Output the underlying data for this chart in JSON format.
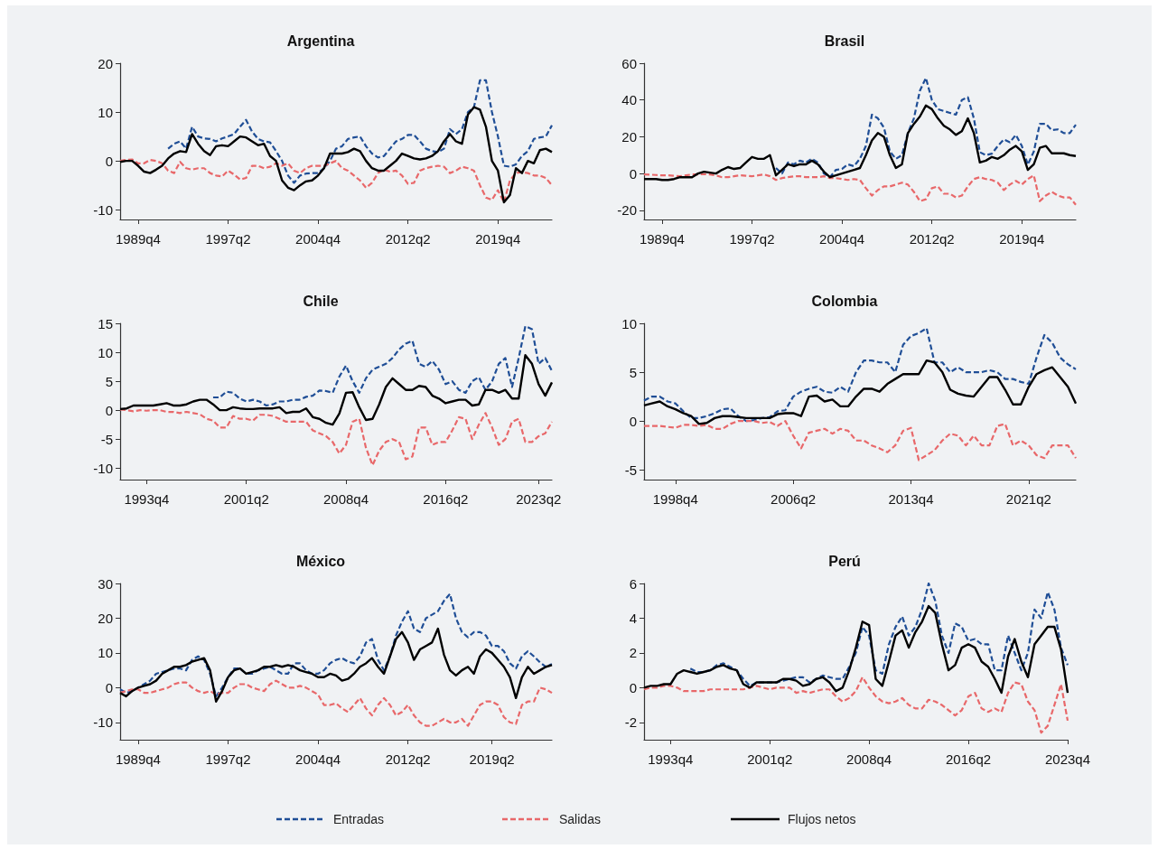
{
  "chart_data": [
    {
      "type": "line",
      "title": "Argentina",
      "legend": "bottom",
      "categories": [
        null,
        null,
        null,
        "1989q4",
        null,
        null,
        null,
        null,
        null,
        null,
        null,
        null,
        null,
        null,
        null,
        null,
        null,
        null,
        "1997q2",
        null,
        null,
        null,
        null,
        null,
        null,
        null,
        null,
        null,
        null,
        null,
        null,
        null,
        null,
        "2004q4",
        null,
        null,
        null,
        null,
        null,
        null,
        null,
        null,
        null,
        null,
        null,
        null,
        null,
        null,
        "2012q2",
        null,
        null,
        null,
        null,
        null,
        null,
        null,
        null,
        null,
        null,
        null,
        null,
        null,
        null,
        "2019q4",
        null,
        null,
        null,
        null,
        null,
        null,
        null,
        null,
        null
      ],
      "ylim": [
        -12,
        20
      ],
      "yticks": [
        -10,
        0,
        10,
        20
      ],
      "series": [
        {
          "name": "Entradas",
          "color": "#1f4e96",
          "line_style": "dashed",
          "values": [
            null,
            null,
            null,
            null,
            null,
            null,
            null,
            null,
            2.5,
            3.5,
            4,
            2.5,
            7,
            5,
            4.6,
            4.5,
            4,
            4.6,
            5,
            5.5,
            7,
            8.4,
            6,
            4.5,
            4,
            3.8,
            2,
            0,
            -3,
            -4.5,
            -3,
            -2.6,
            -2.5,
            -2.5,
            -1.5,
            0,
            2.5,
            3,
            4.5,
            4.8,
            5,
            3,
            1.5,
            0.7,
            1,
            2.5,
            4,
            4.5,
            5.3,
            5.3,
            4,
            2.5,
            2,
            1.8,
            2.5,
            6.5,
            5.5,
            6.5,
            10,
            11,
            16.5,
            16.5,
            10,
            5,
            -1,
            -1.2,
            -0.7,
            1,
            2,
            4.5,
            4.8,
            5,
            7.3
          ]
        },
        {
          "name": "Salidas",
          "color": "#e8686a",
          "line_style": "dashed",
          "values": [
            0,
            0.2,
            0.3,
            -0.5,
            -0.5,
            0.2,
            0,
            -0.5,
            -2,
            -2.5,
            -0.2,
            -1.5,
            -1.8,
            -1.5,
            -1.5,
            -2.5,
            -3,
            -3.2,
            -2,
            -2.8,
            -3.8,
            -3.5,
            -1,
            -1,
            -1.5,
            -1.2,
            -0.5,
            -1,
            -0.5,
            -2,
            -2.5,
            -1.5,
            -1,
            -1,
            -1,
            -0.5,
            0,
            -1.5,
            -2,
            -3,
            -4,
            -5.5,
            -4.5,
            -2.5,
            -1.8,
            -2.2,
            -2,
            -3,
            -4.7,
            -4.5,
            -2,
            -1.5,
            -1.2,
            -1,
            -1.2,
            -2.5,
            -2,
            -1.2,
            -1.5,
            -2,
            -5,
            -7.5,
            -8,
            -6,
            -8.5,
            -4,
            -2.5,
            -2.3,
            -2.5,
            -3,
            -3,
            -3.5,
            -5
          ]
        },
        {
          "name": "Flujos netos",
          "color": "#000000",
          "line_style": "solid",
          "values": [
            -0.2,
            0,
            0,
            -1,
            -2.2,
            -2.5,
            -1.8,
            -1,
            0.5,
            1.5,
            2,
            1.8,
            5.5,
            3.5,
            2,
            1.2,
            3,
            3.2,
            3,
            4,
            5,
            4.8,
            4,
            3.2,
            3.5,
            1,
            0,
            -4,
            -5.5,
            -6,
            -5,
            -4.2,
            -4,
            -3,
            -1.5,
            1.5,
            1.5,
            1.5,
            1.8,
            2.5,
            2,
            0,
            -1.5,
            -2,
            -2,
            -1,
            0,
            1.5,
            1,
            0.5,
            0.3,
            0.5,
            1,
            2,
            4,
            5.5,
            4,
            3.5,
            9.5,
            11,
            10.5,
            7,
            0,
            -2,
            -8.5,
            -7,
            -1.5,
            -2.5,
            0,
            -0.5,
            2.2,
            2.5,
            1.8
          ]
        }
      ]
    },
    {
      "type": "line",
      "title": "Brasil",
      "legend": "bottom",
      "categories": [
        null,
        null,
        null,
        "1989q4",
        null,
        null,
        null,
        null,
        null,
        null,
        null,
        null,
        null,
        null,
        null,
        null,
        null,
        null,
        "1997q2",
        null,
        null,
        null,
        null,
        null,
        null,
        null,
        null,
        null,
        null,
        null,
        null,
        null,
        null,
        "2004q4",
        null,
        null,
        null,
        null,
        null,
        null,
        null,
        null,
        null,
        null,
        null,
        null,
        null,
        null,
        "2012q2",
        null,
        null,
        null,
        null,
        null,
        null,
        null,
        null,
        null,
        null,
        null,
        null,
        null,
        null,
        "2019q4",
        null,
        null,
        null,
        null,
        null,
        null,
        null,
        null,
        null
      ],
      "ylim": [
        -25,
        60
      ],
      "yticks": [
        -20,
        0,
        20,
        40,
        60
      ],
      "series": [
        {
          "name": "Entradas",
          "color": "#1f4e96",
          "line_style": "dashed",
          "values": [
            null,
            null,
            null,
            null,
            null,
            null,
            null,
            null,
            null,
            null,
            null,
            null,
            null,
            null,
            null,
            null,
            null,
            null,
            null,
            null,
            null,
            null,
            3,
            0,
            6,
            5,
            7,
            6,
            8,
            6,
            0,
            -2,
            2,
            2.5,
            5,
            4,
            8,
            15,
            32,
            30,
            25,
            12,
            8,
            10,
            22,
            30,
            45,
            52,
            40,
            35,
            34,
            33,
            32,
            40,
            41.5,
            30,
            11.6,
            10,
            10.8,
            15,
            18.5,
            17,
            21,
            15,
            4.8,
            12,
            27,
            27,
            23.6,
            24,
            22,
            22,
            26.5
          ]
        },
        {
          "name": "Salidas",
          "color": "#e8686a",
          "line_style": "dashed",
          "values": [
            -0.5,
            -0.6,
            -0.8,
            -1,
            -1,
            -1.2,
            -1.5,
            -1,
            -0.5,
            -0.5,
            -0.3,
            -0.5,
            -1,
            -2,
            -2,
            -1.5,
            -1,
            -1.2,
            -1.5,
            -1,
            -0.5,
            -1.5,
            -3.5,
            -2.5,
            -2,
            -1.5,
            -1.5,
            -2,
            -2,
            -2,
            -1.5,
            -2.5,
            -2.5,
            -3,
            -3.5,
            -3,
            -3.5,
            -8,
            -12,
            -9,
            -7,
            -7,
            -6,
            -5,
            -6,
            -10,
            -15,
            -14,
            -8,
            -7,
            -11,
            -11,
            -13,
            -12,
            -7,
            -3,
            -2,
            -3,
            -3.5,
            -5,
            -9,
            -6,
            -4,
            -6,
            -3,
            -1,
            -15,
            -12,
            -10,
            -12,
            -13,
            -13,
            -17
          ]
        },
        {
          "name": "Flujos netos",
          "color": "#000000",
          "line_style": "solid",
          "values": [
            -3,
            -3,
            -3,
            -3.5,
            -3.5,
            -3,
            -2,
            -2,
            -2,
            0,
            1,
            0.5,
            0,
            2,
            3.5,
            2.5,
            3,
            6,
            9,
            8,
            8,
            10,
            -1,
            2,
            5,
            4,
            5,
            5,
            7,
            5,
            1,
            -2,
            -1,
            0,
            1,
            2,
            3,
            10,
            18,
            22,
            20,
            10,
            3,
            5,
            22,
            27,
            31,
            37,
            35,
            30,
            26,
            24,
            21,
            23,
            30,
            22,
            6,
            7,
            9,
            8,
            10,
            13,
            15,
            12,
            2,
            5,
            14,
            15,
            11,
            11,
            11,
            10,
            9.5
          ]
        }
      ]
    },
    {
      "type": "line",
      "title": "Chile",
      "legend": "bottom",
      "categories": [
        null,
        null,
        null,
        null,
        "1993q4",
        null,
        null,
        null,
        null,
        null,
        null,
        null,
        null,
        null,
        null,
        null,
        null,
        null,
        null,
        "2001q2",
        null,
        null,
        null,
        null,
        null,
        null,
        null,
        null,
        null,
        null,
        null,
        null,
        null,
        null,
        "2008q4",
        null,
        null,
        null,
        null,
        null,
        null,
        null,
        null,
        null,
        null,
        null,
        null,
        null,
        null,
        "2016q2",
        null,
        null,
        null,
        null,
        null,
        null,
        null,
        null,
        null,
        null,
        null,
        null,
        null,
        "2023q2",
        null,
        null
      ],
      "ylim": [
        -12,
        15
      ],
      "yticks": [
        -10,
        -5,
        0,
        5,
        10,
        15
      ],
      "series": [
        {
          "name": "Entradas",
          "color": "#1f4e96",
          "line_style": "dashed",
          "values": [
            null,
            null,
            null,
            null,
            null,
            null,
            null,
            null,
            null,
            null,
            null,
            null,
            null,
            null,
            2.2,
            2.2,
            3.2,
            3,
            2,
            1.5,
            1.8,
            1.5,
            0.8,
            1,
            1.5,
            1.5,
            1.8,
            1.8,
            2.3,
            2.5,
            3.4,
            3.3,
            3,
            5.8,
            7.7,
            5,
            3,
            5.5,
            7,
            7.5,
            8,
            9,
            10.5,
            11.5,
            12,
            8,
            7.5,
            8.5,
            7,
            4.5,
            5,
            3.5,
            3,
            5,
            5.7,
            3.5,
            5,
            8,
            9,
            4,
            9,
            14.5,
            14,
            8,
            9,
            6.8
          ]
        },
        {
          "name": "Salidas",
          "color": "#e8686a",
          "line_style": "dashed",
          "values": [
            0.1,
            0,
            -0.2,
            0,
            -0.1,
            0,
            0,
            -0.3,
            -0.3,
            -0.5,
            -0.3,
            -0.5,
            -0.7,
            -1.5,
            -1.8,
            -3,
            -3,
            -1,
            -1.5,
            -1.5,
            -1.8,
            -0.8,
            -0.8,
            -1,
            -1.5,
            -2,
            -2,
            -2,
            -2,
            -3.5,
            -4,
            -4.5,
            -5.5,
            -7.5,
            -6,
            -2,
            -1.5,
            -6.5,
            -9.5,
            -7,
            -5.5,
            -5,
            -5.5,
            -8.5,
            -8,
            -3,
            -3,
            -6,
            -5.5,
            -5.5,
            -3.5,
            -1.2,
            -1.5,
            -5,
            -2.5,
            -0.5,
            -3,
            -6,
            -5,
            -2,
            -1.5,
            -5.5,
            -5.5,
            -4.5,
            -4,
            -2
          ]
        },
        {
          "name": "Flujos netos",
          "color": "#000000",
          "line_style": "solid",
          "values": [
            0.2,
            0.3,
            0.8,
            0.8,
            0.8,
            0.8,
            1,
            1.2,
            0.8,
            0.8,
            1,
            1.5,
            1.8,
            1.8,
            1,
            0,
            0,
            0.5,
            0.3,
            0.2,
            0.2,
            0.3,
            0.3,
            0.3,
            0.5,
            -0.5,
            -0.3,
            -0.3,
            0.3,
            -1.2,
            -1.5,
            -2.2,
            -2.5,
            -0.6,
            3,
            3.1,
            0.5,
            -1.7,
            -1.5,
            1,
            4,
            5.5,
            4.5,
            3.5,
            3.5,
            4.2,
            4,
            2.5,
            2,
            1.2,
            1.5,
            1.8,
            1.8,
            0.8,
            1,
            3.5,
            3.5,
            3,
            3.5,
            2,
            2,
            9.5,
            8,
            4.5,
            2.5,
            4.8
          ]
        }
      ]
    },
    {
      "type": "line",
      "title": "Colombia",
      "legend": "bottom",
      "categories": [
        null,
        null,
        null,
        null,
        "1998q4",
        null,
        null,
        null,
        null,
        null,
        null,
        null,
        null,
        null,
        null,
        null,
        null,
        null,
        null,
        "2006q2",
        null,
        null,
        null,
        null,
        null,
        null,
        null,
        null,
        null,
        null,
        null,
        null,
        null,
        null,
        "2013q4",
        null,
        null,
        null,
        null,
        null,
        null,
        null,
        null,
        null,
        null,
        null,
        null,
        null,
        null,
        "2021q2",
        null,
        null,
        null,
        null,
        null,
        null
      ],
      "ylim": [
        -6,
        10
      ],
      "yticks": [
        -5,
        0,
        5,
        10
      ],
      "series": [
        {
          "name": "Entradas",
          "color": "#1f4e96",
          "line_style": "dashed",
          "values": [
            2.1,
            2.5,
            2.5,
            2,
            1.8,
            1,
            0.3,
            0.3,
            0.5,
            0.8,
            1.2,
            1.3,
            0.5,
            0,
            0.1,
            0.3,
            0.4,
            1,
            1.1,
            2.5,
            3,
            3.3,
            3.5,
            3,
            2.9,
            3.5,
            3,
            5,
            6.2,
            6.2,
            6,
            6,
            5,
            7.8,
            8.7,
            9,
            9.5,
            6,
            6,
            5,
            5.5,
            5,
            5,
            5,
            5.2,
            5,
            4.3,
            4.3,
            4,
            3.8,
            6.5,
            8.8,
            8,
            6.5,
            5.8,
            5.3
          ]
        },
        {
          "name": "Salidas",
          "color": "#e8686a",
          "line_style": "dashed",
          "values": [
            -0.5,
            -0.5,
            -0.5,
            -0.6,
            -0.7,
            -0.4,
            -0.4,
            -0.5,
            -0.4,
            -0.8,
            -0.8,
            -0.3,
            0,
            0,
            0,
            -0.2,
            -0.1,
            -0.5,
            0,
            -1.5,
            -2.8,
            -1.2,
            -1,
            -0.8,
            -1.3,
            -0.8,
            -1,
            -2,
            -2,
            -2.5,
            -2.8,
            -3.2,
            -2.5,
            -1,
            -0.7,
            -4,
            -3.5,
            -3,
            -2,
            -1.3,
            -1.5,
            -2.5,
            -1.5,
            -2.5,
            -2.5,
            -0.5,
            -0.3,
            -2.5,
            -2,
            -2.5,
            -3.5,
            -3.8,
            -2.5,
            -2.5,
            -2.5,
            -3.8
          ]
        },
        {
          "name": "Flujos netos",
          "color": "#000000",
          "line_style": "solid",
          "values": [
            1.6,
            1.8,
            2,
            1.5,
            1.2,
            0.8,
            0.5,
            -0.3,
            -0.2,
            0.3,
            0.5,
            0.5,
            0.4,
            0.3,
            0.3,
            0.3,
            0.3,
            0.7,
            0.8,
            0.8,
            0.5,
            2.5,
            2.6,
            2,
            2.2,
            1.5,
            1.5,
            2.5,
            3.3,
            3.3,
            3,
            3.8,
            4.3,
            4.8,
            4.8,
            4.8,
            6.2,
            6,
            5,
            3.2,
            2.8,
            2.6,
            2.5,
            3.5,
            4.5,
            4.5,
            3.2,
            1.7,
            1.7,
            3.5,
            4.8,
            5.2,
            5.5,
            4.5,
            3.5,
            1.8
          ]
        }
      ]
    },
    {
      "type": "line",
      "title": "México",
      "legend": "bottom",
      "categories": [
        null,
        null,
        null,
        "1989q4",
        null,
        null,
        null,
        null,
        null,
        null,
        null,
        null,
        null,
        null,
        null,
        null,
        null,
        null,
        "1997q2",
        null,
        null,
        null,
        null,
        null,
        null,
        null,
        null,
        null,
        null,
        null,
        null,
        null,
        null,
        "2004q4",
        null,
        null,
        null,
        null,
        null,
        null,
        null,
        null,
        null,
        null,
        null,
        null,
        null,
        null,
        "2012q2",
        null,
        null,
        null,
        null,
        null,
        null,
        null,
        null,
        null,
        null,
        null,
        null,
        null,
        "2019q2",
        null,
        null,
        null,
        null,
        null,
        null,
        null,
        null,
        null,
        null
      ],
      "ylim": [
        -15,
        30
      ],
      "yticks": [
        -10,
        0,
        10,
        20,
        30
      ],
      "series": [
        {
          "name": "Entradas",
          "color": "#1f4e96",
          "line_style": "dashed",
          "values": [
            -0.5,
            -1.5,
            -1,
            0,
            1,
            2,
            4,
            4.5,
            5,
            5.5,
            5.5,
            5,
            8,
            9,
            8,
            4,
            -2.5,
            0,
            3,
            5.5,
            5.5,
            4,
            4,
            5,
            5.5,
            6,
            5,
            4,
            4,
            7,
            7,
            5,
            4,
            4,
            5,
            7,
            8,
            8.5,
            7.5,
            7,
            9,
            13,
            14,
            8,
            5,
            9,
            15,
            19,
            22,
            17,
            16,
            20,
            21,
            22,
            25,
            27,
            20,
            16,
            14.5,
            16,
            16,
            15,
            12,
            12,
            10.5,
            7,
            5.5,
            9,
            10.5,
            9,
            7.3,
            6,
            6.8
          ]
        },
        {
          "name": "Salidas",
          "color": "#e8686a",
          "line_style": "dashed",
          "values": [
            -1.5,
            -1,
            -0.5,
            -0.5,
            -1.5,
            -1.5,
            -1,
            -0.5,
            0,
            1,
            1.5,
            1.5,
            0,
            -1,
            -1.5,
            -1,
            -2,
            -1.5,
            -1.5,
            0,
            1,
            1,
            0,
            -0.5,
            -1,
            1,
            2,
            1,
            0,
            0,
            0.5,
            0,
            -1,
            -2,
            -5,
            -5,
            -4.5,
            -6,
            -7,
            -5,
            -3,
            -6,
            -8,
            -5,
            -3,
            -5,
            -8,
            -7,
            -5,
            -8,
            -10,
            -11,
            -11,
            -10,
            -9,
            -10,
            -10,
            -9,
            -11,
            -8,
            -5,
            -4,
            -4,
            -5,
            -8.5,
            -10,
            -10.5,
            -5,
            -4,
            -4,
            0,
            -0.5,
            -1.5
          ]
        },
        {
          "name": "Flujos netos",
          "color": "#000000",
          "line_style": "solid",
          "values": [
            -1.5,
            -2.5,
            -1,
            0,
            0.5,
            1,
            2,
            4,
            5,
            6,
            6,
            6.5,
            7.5,
            8,
            8.5,
            5,
            -4,
            -1,
            3,
            5,
            5.5,
            4,
            4.5,
            5,
            6,
            6,
            6.5,
            6,
            6.5,
            6,
            5,
            4.5,
            4,
            3,
            3,
            4,
            3.5,
            2,
            2.5,
            4,
            6,
            7,
            8.5,
            6,
            4,
            9,
            14,
            16,
            13,
            8,
            11,
            12,
            13,
            17,
            9.5,
            5,
            3.5,
            5,
            6,
            4,
            9,
            11,
            10,
            8,
            6,
            3,
            -3,
            3,
            6,
            4,
            5,
            6,
            6.5
          ]
        }
      ]
    },
    {
      "type": "line",
      "title": "Perú",
      "legend": "bottom",
      "categories": [
        null,
        null,
        null,
        null,
        "1993q4",
        null,
        null,
        null,
        null,
        null,
        null,
        null,
        null,
        null,
        null,
        null,
        null,
        null,
        null,
        "2001q2",
        null,
        null,
        null,
        null,
        null,
        null,
        null,
        null,
        null,
        null,
        null,
        null,
        null,
        null,
        "2008q4",
        null,
        null,
        null,
        null,
        null,
        null,
        null,
        null,
        null,
        null,
        null,
        null,
        null,
        null,
        "2016q2",
        null,
        null,
        null,
        null,
        null,
        null,
        null,
        null,
        null,
        null,
        null,
        null,
        null,
        null,
        "2023q4"
      ],
      "ylim": [
        -3,
        6
      ],
      "yticks": [
        -2,
        0,
        2,
        4,
        6
      ],
      "series": [
        {
          "name": "Entradas",
          "color": "#1f4e96",
          "line_style": "dashed",
          "values": [
            null,
            null,
            null,
            null,
            null,
            null,
            null,
            1.1,
            0.9,
            0.9,
            1,
            1.3,
            1.4,
            1.2,
            1,
            0.5,
            0.1,
            0.3,
            0.3,
            0.3,
            0.3,
            0.4,
            0.5,
            0.6,
            0.6,
            0.3,
            0.5,
            0.7,
            0.6,
            0.5,
            0.5,
            1.2,
            2,
            3.5,
            3,
            1,
            0.8,
            2.5,
            3.5,
            4.1,
            3,
            3.5,
            4.5,
            6,
            5,
            3,
            2,
            3.7,
            3.5,
            2.7,
            2.8,
            2.5,
            2.5,
            1,
            1,
            3,
            2,
            1,
            2,
            4.5,
            4,
            5.5,
            4.5,
            2.3,
            1.3
          ]
        },
        {
          "name": "Salidas",
          "color": "#e8686a",
          "line_style": "dashed",
          "values": [
            -0.1,
            0,
            0,
            0.1,
            0.1,
            0,
            -0.2,
            -0.2,
            -0.2,
            -0.2,
            -0.1,
            -0.1,
            -0.1,
            -0.1,
            -0.1,
            -0.1,
            0,
            0.1,
            0,
            -0.1,
            0,
            0,
            0,
            -0.3,
            -0.2,
            -0.3,
            -0.2,
            -0.1,
            -0.1,
            -0.5,
            -0.8,
            -0.6,
            -0.2,
            0.6,
            0,
            -0.5,
            -0.8,
            -0.9,
            -0.8,
            -0.6,
            -1,
            -1.2,
            -1.2,
            -0.7,
            -0.8,
            -1,
            -1.3,
            -1.6,
            -1.3,
            -0.5,
            -0.3,
            -1.2,
            -1.4,
            -1.2,
            -1.4,
            -0.3,
            0.3,
            0.2,
            -0.8,
            -1.3,
            -2.6,
            -2.2,
            -1,
            0.2,
            -1.9
          ]
        },
        {
          "name": "Flujos netos",
          "color": "#000000",
          "line_style": "solid",
          "values": [
            0,
            0.1,
            0.1,
            0.2,
            0.2,
            0.8,
            1,
            0.9,
            0.8,
            0.9,
            1,
            1.2,
            1.3,
            1.1,
            1,
            0.2,
            0,
            0.3,
            0.3,
            0.3,
            0.3,
            0.5,
            0.5,
            0.4,
            0.1,
            0.2,
            0.5,
            0.6,
            0.3,
            -0.2,
            0,
            1,
            2.3,
            3.8,
            3.6,
            0.5,
            0.1,
            1.5,
            3,
            3.3,
            2.3,
            3.2,
            3.8,
            4.7,
            4.3,
            2.5,
            1,
            1.3,
            2.3,
            2.5,
            2.3,
            1.5,
            1.2,
            0.5,
            -0.3,
            1.8,
            2.8,
            1.5,
            0.6,
            2.5,
            3,
            3.5,
            3.5,
            2.2,
            -0.3
          ]
        }
      ]
    }
  ]
}
